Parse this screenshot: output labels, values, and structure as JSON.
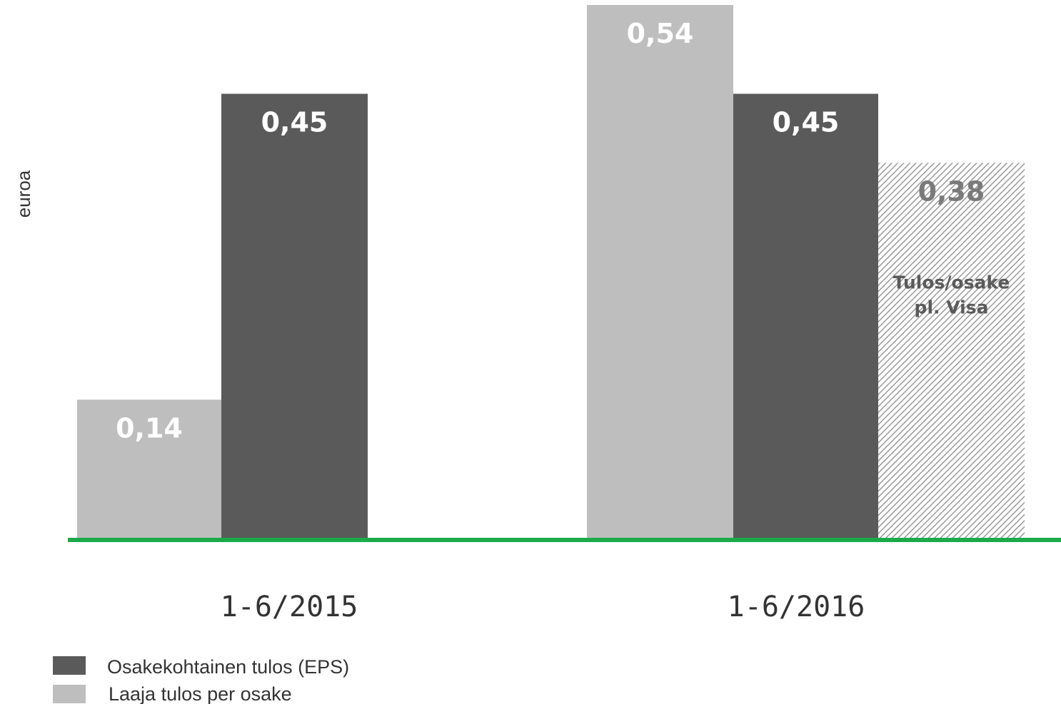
{
  "chart_data": {
    "type": "bar",
    "ylabel": "euroa",
    "ylim": [
      0,
      0.54
    ],
    "grid": false,
    "legend_position": "bottom-left",
    "categories": [
      "1-6/2015",
      "1-6/2016"
    ],
    "groups": [
      {
        "category": "1-6/2015",
        "bars": [
          {
            "series": "Laaja tulos per osake",
            "value": 0.14,
            "label": "0,14"
          },
          {
            "series": "Osakekohtainen tulos (EPS)",
            "value": 0.45,
            "label": "0,45"
          }
        ]
      },
      {
        "category": "1-6/2016",
        "bars": [
          {
            "series": "Laaja tulos per osake",
            "value": 0.54,
            "label": "0,54"
          },
          {
            "series": "Osakekohtainen tulos (EPS)",
            "value": 0.45,
            "label": "0,45"
          },
          {
            "series": "Tulos/osake pl. Visa",
            "value": 0.38,
            "label": "0,38",
            "annotation": [
              "Tulos/osake",
              "pl. Visa"
            ]
          }
        ]
      }
    ],
    "legend": [
      {
        "name": "Osakekohtainen tulos (EPS)",
        "color": "#5a5a5a"
      },
      {
        "name": "Laaja tulos per osake",
        "color": "#bebebe"
      }
    ],
    "colors": {
      "eps": "#5a5a5a",
      "comprehensive": "#bebebe",
      "excluding_visa": "#c8c8c8",
      "baseline": "#1aaa4a",
      "label_light": "#ffffff",
      "label_dark": "#7a7a7a"
    }
  }
}
